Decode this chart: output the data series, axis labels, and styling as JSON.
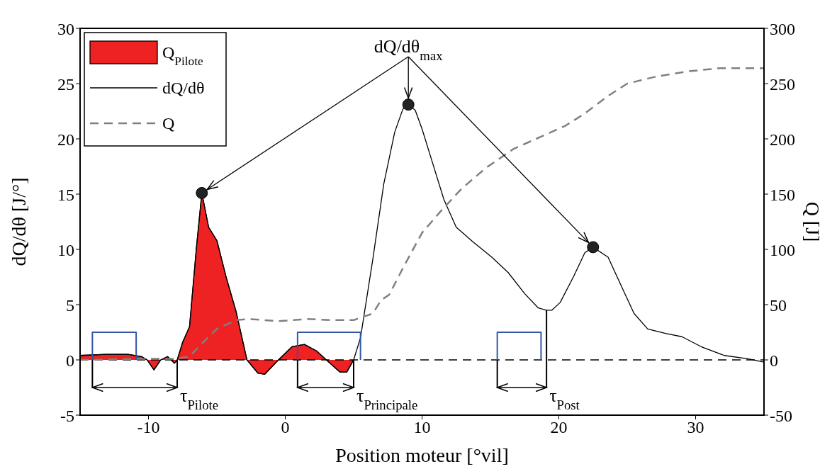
{
  "chart_data": {
    "type": "line",
    "xlabel": "Position moteur [°vil]",
    "ylabel": "dQ/dθ [J/°]",
    "y2label": "Q [J]",
    "xlim": [
      -15,
      35
    ],
    "xticks": [
      -10,
      0,
      10,
      20,
      30
    ],
    "ylim": [
      -5,
      30
    ],
    "yticks": [
      -5,
      0,
      5,
      10,
      15,
      20,
      25,
      30
    ],
    "y2lim": [
      -50,
      300
    ],
    "y2ticks": [
      -50,
      0,
      50,
      100,
      150,
      200,
      250,
      300
    ],
    "legend": "top left",
    "series": [
      {
        "name": "Q$_{Pilote}$",
        "type": "area",
        "color": "#ee2222",
        "x": [
          -15,
          -13.1,
          -11.5,
          -10.5,
          -10.1,
          -9.6,
          -9.1,
          -8.6,
          -8.1,
          -7.9,
          -7.5,
          -7.0,
          -6.5,
          -6.1,
          -5.6,
          -5.0,
          -4.3,
          -3.6,
          -2.8,
          -2.0,
          -1.5,
          -0.5,
          0.5,
          1.4,
          2.3,
          3.0,
          4.0,
          4.5,
          5.0
        ],
        "values": [
          0.4,
          0.5,
          0.5,
          0.3,
          0,
          -0.9,
          0,
          0.3,
          -0.3,
          0,
          1.6,
          3.0,
          10.1,
          15.1,
          12.0,
          10.8,
          7.4,
          4.4,
          0,
          -1.2,
          -1.3,
          0,
          1.2,
          1.4,
          0.8,
          0,
          -1.1,
          -1.1,
          0
        ]
      },
      {
        "name": "dQ/dθ",
        "color": "#000000",
        "line_style": "solid",
        "x": [
          -15,
          -13.1,
          -11.5,
          -10.5,
          -10.1,
          -9.6,
          -9.1,
          -8.6,
          -8.1,
          -7.9,
          -7.5,
          -7.0,
          -6.5,
          -6.1,
          -5.6,
          -5.0,
          -4.3,
          -3.6,
          -2.8,
          -2.0,
          -1.5,
          -0.5,
          0.5,
          1.4,
          2.3,
          3.0,
          4.0,
          4.5,
          5.0,
          5.5,
          6.4,
          7.2,
          8.0,
          8.6,
          9.0,
          9.5,
          10.0,
          10.8,
          11.6,
          12.5,
          13.7,
          15.1,
          16.3,
          17.5,
          18.5,
          19.1,
          19.5,
          20.1,
          21.1,
          21.9,
          22.5,
          23.6,
          24.6,
          25.5,
          26.5,
          27.8,
          29.0,
          30.4,
          32.1,
          33.8,
          35
        ],
        "values": [
          0.4,
          0.5,
          0.5,
          0.3,
          0,
          -0.9,
          0,
          0.3,
          -0.3,
          0,
          1.6,
          3.0,
          10.1,
          15.1,
          12.0,
          10.8,
          7.4,
          4.4,
          0,
          -1.2,
          -1.3,
          0,
          1.2,
          1.4,
          0.8,
          0,
          -1.1,
          -1.1,
          0,
          2.0,
          9.1,
          15.9,
          20.6,
          22.7,
          23.1,
          22.6,
          20.9,
          17.7,
          14.5,
          12.0,
          10.7,
          9.3,
          7.9,
          6.0,
          4.7,
          4.5,
          4.5,
          5.2,
          7.6,
          9.7,
          10.2,
          9.3,
          6.6,
          4.2,
          2.8,
          2.4,
          2.1,
          1.2,
          0.4,
          0.1,
          -0.2
        ]
      },
      {
        "name": "Q",
        "type": "line",
        "axis": "y2",
        "color": "#808080",
        "line_style": "dashed",
        "x": [
          -15,
          -10.5,
          -8.1,
          -7.0,
          -6.0,
          -5.0,
          -3.6,
          -2.6,
          -0.5,
          1.6,
          3.3,
          5.0,
          6.4,
          7.0,
          7.6,
          8.6,
          10.0,
          11.4,
          12.9,
          14.7,
          16.7,
          18.7,
          20.5,
          21.9,
          23.5,
          25.0,
          27.0,
          29.4,
          31.8,
          35
        ],
        "values": [
          0,
          1,
          1,
          3,
          16,
          28,
          36,
          37,
          35,
          37,
          36,
          36,
          42,
          54,
          59,
          83,
          115,
          135,
          155,
          174,
          191,
          202,
          212,
          223,
          238,
          250,
          256,
          261,
          264,
          264
        ]
      },
      {
        "type": "step",
        "color": "#3355aa",
        "x": [
          -14.1,
          -14.1,
          -10.9,
          -10.9,
          -5,
          0.9,
          0.9,
          5.5,
          5.5,
          10,
          15.5,
          15.5,
          18.7,
          18.7
        ],
        "values": [
          0,
          2.5,
          2.5,
          0,
          null,
          0,
          2.5,
          2.5,
          0,
          null,
          0,
          2.5,
          2.5,
          0
        ]
      },
      {
        "type": "scatter",
        "color": "#222222",
        "marker": "circle",
        "x": [
          -6.1,
          9.0,
          22.5
        ],
        "values": [
          15.1,
          23.1,
          10.2
        ]
      }
    ],
    "ref_lines": [
      {
        "axis": "y",
        "value": 0,
        "color": "#000000",
        "line_style": "dashed"
      }
    ],
    "annotations": [
      {
        "text": "dQ/dθ$_{max}$",
        "x": 9.0,
        "y": 23.1
      },
      {
        "text": "τ$_{Pilote}$",
        "x": -7.9,
        "y": 0
      },
      {
        "text": "τ$_{Principale}$",
        "x": 5.0,
        "y": 0
      },
      {
        "text": "τ$_{Post}$",
        "x": 19.1,
        "y": 4.5
      }
    ]
  }
}
